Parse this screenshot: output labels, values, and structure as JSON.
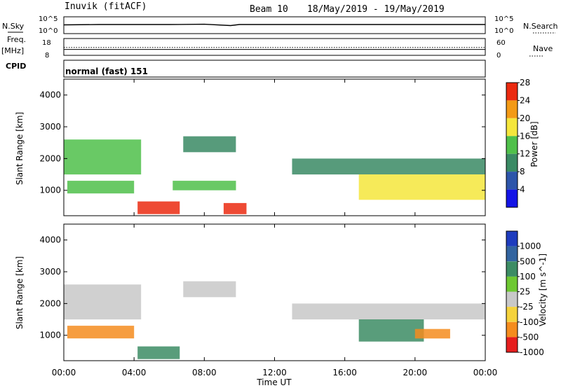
{
  "header": {
    "station": "Inuvik (fitACF)",
    "beam": "Beam 10",
    "date_range": "18/May/2019 - 19/May/2019"
  },
  "chart_data": [
    {
      "type": "line",
      "panel": "noise",
      "left_label": "N.Sky",
      "right_label": "N.Search",
      "left_ticks": [
        "10^5",
        "10^0"
      ],
      "right_ticks": [
        "10^5",
        "10^0"
      ],
      "x": [
        0,
        2,
        4,
        6,
        8,
        9.5,
        10,
        12,
        14,
        16,
        18,
        20,
        22,
        24
      ],
      "series": [
        {
          "name": "N.Sky",
          "values": [
            2.6,
            2.7,
            2.7,
            2.7,
            2.8,
            2.4,
            2.7,
            2.7,
            2.7,
            2.7,
            2.7,
            2.7,
            2.7,
            2.7
          ]
        }
      ]
    },
    {
      "type": "line",
      "panel": "frequency",
      "left_label": "Freq.",
      "left_unit": "[MHz]",
      "right_label": "Nave",
      "left_ticks": [
        "18",
        "8"
      ],
      "right_ticks": [
        "60",
        "0"
      ],
      "x": [
        0,
        4,
        8,
        12,
        16,
        20,
        24
      ],
      "series": [
        {
          "name": "Freq.",
          "values": [
            11.5,
            11.5,
            11.5,
            11.5,
            11.5,
            11.5,
            11.5
          ]
        },
        {
          "name": "Nave",
          "values": [
            28,
            28,
            28,
            28,
            28,
            28,
            28
          ]
        }
      ]
    },
    {
      "type": "table",
      "panel": "cpid",
      "label": "CPID",
      "text": "normal (fast) 151"
    },
    {
      "type": "heatmap",
      "panel": "power",
      "ylabel": "Slant Range [km]",
      "yticks": [
        "1000",
        "2000",
        "3000",
        "4000"
      ],
      "ylim": [
        200,
        4500
      ],
      "colorbar_label": "Power [dB]",
      "colorbar_ticks": [
        "4",
        "8",
        "12",
        "16",
        "20",
        "24",
        "28"
      ],
      "colors": [
        "#1414e6",
        "#2d55aa",
        "#3a8a64",
        "#4fc04a",
        "#f5e63c",
        "#f39a16",
        "#eb2a10"
      ],
      "regions": [
        {
          "t0": 0.0,
          "t1": 4.4,
          "r0": 1500,
          "r1": 2600,
          "level": 12
        },
        {
          "t0": 0.2,
          "t1": 4.0,
          "r0": 900,
          "r1": 1300,
          "level": 14
        },
        {
          "t0": 4.2,
          "t1": 6.6,
          "r0": 250,
          "r1": 650,
          "level": 26
        },
        {
          "t0": 6.8,
          "t1": 9.8,
          "r0": 2200,
          "r1": 2700,
          "level": 10
        },
        {
          "t0": 6.2,
          "t1": 9.8,
          "r0": 1000,
          "r1": 1300,
          "level": 12
        },
        {
          "t0": 9.1,
          "t1": 10.4,
          "r0": 250,
          "r1": 600,
          "level": 24
        },
        {
          "t0": 13.0,
          "t1": 24.0,
          "r0": 1500,
          "r1": 2000,
          "level": 8
        },
        {
          "t0": 16.8,
          "t1": 24.0,
          "r0": 700,
          "r1": 1500,
          "level": 18
        }
      ]
    },
    {
      "type": "heatmap",
      "panel": "velocity",
      "ylabel": "Slant Range [km]",
      "yticks": [
        "1000",
        "2000",
        "3000",
        "4000"
      ],
      "ylim": [
        200,
        4500
      ],
      "xlabel": "Time UT",
      "xticks": [
        "00:00",
        "04:00",
        "08:00",
        "12:00",
        "16:00",
        "20:00",
        "00:00"
      ],
      "colorbar_label": "Velocity [m s^-1]",
      "colorbar_ticks": [
        "1000",
        "500",
        "100",
        "25",
        "-25",
        "-100",
        "-500",
        "-1000"
      ],
      "colors": [
        "#1e3cbe",
        "#3264a0",
        "#3c8c64",
        "#6ec832",
        "#c8c8c8",
        "#f5d23c",
        "#f58c1e",
        "#e61e1e"
      ],
      "regions": [
        {
          "t0": 0.0,
          "t1": 4.4,
          "r0": 1500,
          "r1": 2600,
          "level": -10
        },
        {
          "t0": 0.2,
          "t1": 4.0,
          "r0": 900,
          "r1": 1300,
          "level": -150
        },
        {
          "t0": 4.2,
          "t1": 6.6,
          "r0": 250,
          "r1": 650,
          "level": 200
        },
        {
          "t0": 6.8,
          "t1": 9.8,
          "r0": 2200,
          "r1": 2700,
          "level": 0
        },
        {
          "t0": 13.0,
          "t1": 24.0,
          "r0": 1500,
          "r1": 2000,
          "level": 0
        },
        {
          "t0": 16.8,
          "t1": 20.5,
          "r0": 800,
          "r1": 1500,
          "level": 400
        },
        {
          "t0": 20.0,
          "t1": 22.0,
          "r0": 900,
          "r1": 1200,
          "level": -300
        }
      ]
    }
  ]
}
